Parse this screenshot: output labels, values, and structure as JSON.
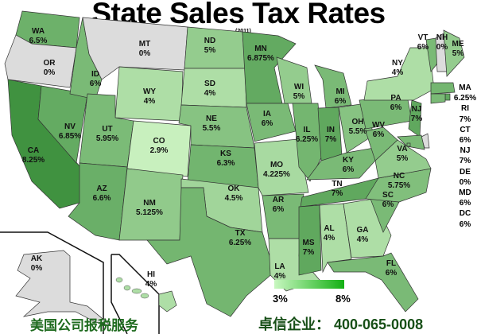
{
  "title": "State Sales Tax Rates",
  "year": "(2011)",
  "legend": {
    "min_label": "3%",
    "max_label": "8%",
    "min_value": 3,
    "max_value": 8,
    "min_color": "#c8f7c0",
    "max_color": "#13b013",
    "zero_color": "#dcdcdc"
  },
  "states": [
    {
      "abbr": "WA",
      "rate": "6.5%",
      "value": 6.5
    },
    {
      "abbr": "OR",
      "rate": "0%",
      "value": 0
    },
    {
      "abbr": "CA",
      "rate": "8.25%",
      "value": 8.25
    },
    {
      "abbr": "NV",
      "rate": "6.85%",
      "value": 6.85
    },
    {
      "abbr": "ID",
      "rate": "6%",
      "value": 6
    },
    {
      "abbr": "MT",
      "rate": "0%",
      "value": 0
    },
    {
      "abbr": "WY",
      "rate": "4%",
      "value": 4
    },
    {
      "abbr": "UT",
      "rate": "5.95%",
      "value": 5.95
    },
    {
      "abbr": "CO",
      "rate": "2.9%",
      "value": 2.9
    },
    {
      "abbr": "AZ",
      "rate": "6.6%",
      "value": 6.6
    },
    {
      "abbr": "NM",
      "rate": "5.125%",
      "value": 5.125
    },
    {
      "abbr": "ND",
      "rate": "5%",
      "value": 5
    },
    {
      "abbr": "SD",
      "rate": "4%",
      "value": 4
    },
    {
      "abbr": "NE",
      "rate": "5.5%",
      "value": 5.5
    },
    {
      "abbr": "KS",
      "rate": "6.3%",
      "value": 6.3
    },
    {
      "abbr": "OK",
      "rate": "4.5%",
      "value": 4.5
    },
    {
      "abbr": "TX",
      "rate": "6.25%",
      "value": 6.25
    },
    {
      "abbr": "MN",
      "rate": "6.875%",
      "value": 6.875
    },
    {
      "abbr": "IA",
      "rate": "6%",
      "value": 6
    },
    {
      "abbr": "MO",
      "rate": "4.225%",
      "value": 4.225
    },
    {
      "abbr": "AR",
      "rate": "6%",
      "value": 6
    },
    {
      "abbr": "LA",
      "rate": "4%",
      "value": 4
    },
    {
      "abbr": "WI",
      "rate": "5%",
      "value": 5
    },
    {
      "abbr": "IL",
      "rate": "6.25%",
      "value": 6.25
    },
    {
      "abbr": "MI",
      "rate": "6%",
      "value": 6
    },
    {
      "abbr": "IN",
      "rate": "7%",
      "value": 7
    },
    {
      "abbr": "OH",
      "rate": "5.5%",
      "value": 5.5
    },
    {
      "abbr": "KY",
      "rate": "6%",
      "value": 6
    },
    {
      "abbr": "TN",
      "rate": "7%",
      "value": 7
    },
    {
      "abbr": "MS",
      "rate": "7%",
      "value": 7
    },
    {
      "abbr": "AL",
      "rate": "4%",
      "value": 4
    },
    {
      "abbr": "GA",
      "rate": "4%",
      "value": 4
    },
    {
      "abbr": "FL",
      "rate": "6%",
      "value": 6
    },
    {
      "abbr": "SC",
      "rate": "6%",
      "value": 6
    },
    {
      "abbr": "NC",
      "rate": "5.75%",
      "value": 5.75
    },
    {
      "abbr": "VA",
      "rate": "5%",
      "value": 5
    },
    {
      "abbr": "WV",
      "rate": "6%",
      "value": 6
    },
    {
      "abbr": "PA",
      "rate": "6%",
      "value": 6
    },
    {
      "abbr": "NY",
      "rate": "4%",
      "value": 4
    },
    {
      "abbr": "NJ",
      "rate": "7%",
      "value": 7
    },
    {
      "abbr": "VT",
      "rate": "6%",
      "value": 6
    },
    {
      "abbr": "NH",
      "rate": "0%",
      "value": 0
    },
    {
      "abbr": "ME",
      "rate": "5%",
      "value": 5
    },
    {
      "abbr": "MA",
      "rate": "6.25%",
      "value": 6.25
    },
    {
      "abbr": "RI",
      "rate": "7%",
      "value": 7
    },
    {
      "abbr": "CT",
      "rate": "6%",
      "value": 6
    },
    {
      "abbr": "DE",
      "rate": "0%",
      "value": 0
    },
    {
      "abbr": "MD",
      "rate": "6%",
      "value": 6
    },
    {
      "abbr": "DC",
      "rate": "6%",
      "value": 6
    },
    {
      "abbr": "AK",
      "rate": "0%",
      "value": 0
    },
    {
      "abbr": "HI",
      "rate": "4%",
      "value": 4
    }
  ],
  "side_list": [
    "MA",
    "6.25%",
    "RI",
    "7%",
    "CT",
    "6%",
    "NJ",
    "7%",
    "DE",
    "0%",
    "MD",
    "6%",
    "DC",
    "6%"
  ],
  "footer": {
    "left": "美国公司报税服务",
    "right": "卓信企业： 400-065-0008"
  }
}
